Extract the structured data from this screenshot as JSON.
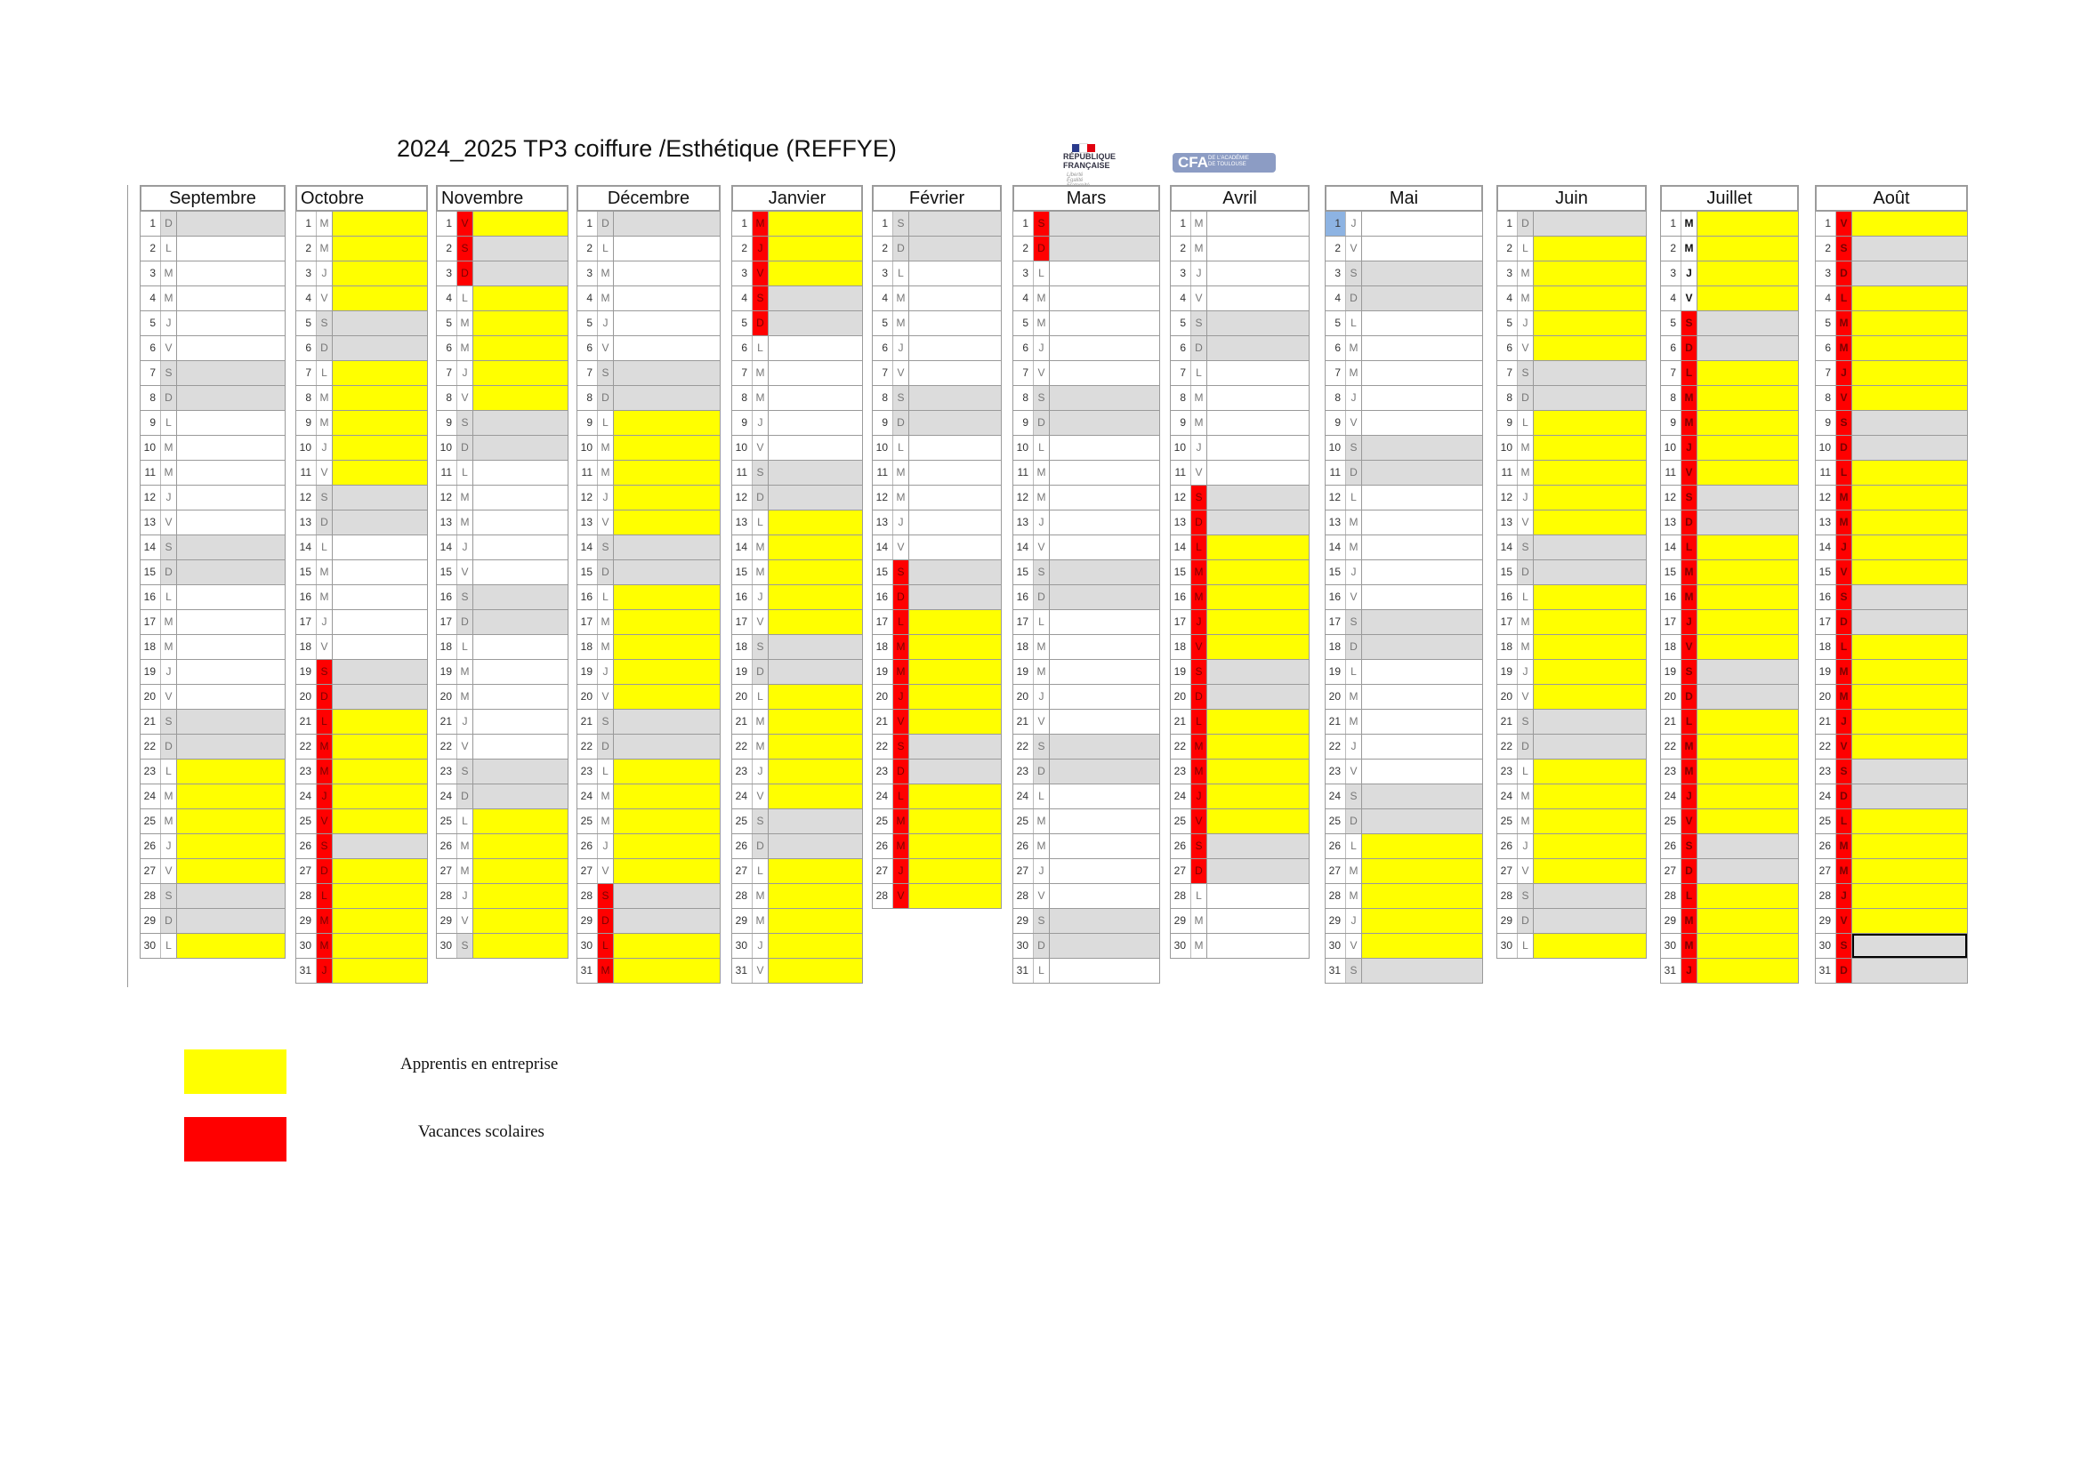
{
  "title": "2024_2025 TP3 coiffure /Esthétique (REFFYE)",
  "logos": {
    "rf_lines": [
      "RÉPUBLIQUE",
      "FRANÇAISE"
    ],
    "rf_motto": "Liberté\nÉgalité\nFraternité",
    "cfa_big": "CFA",
    "cfa_small": "DE L'ACADÉMIE\nDE TOULOUSE"
  },
  "colors": {
    "apprentis": "#ffff00",
    "vacances": "#ff0000",
    "weekend": "#dcdcdc",
    "highlight": "#8db3e2"
  },
  "legend": [
    {
      "label": "Apprentis en entreprise",
      "color": "#ffff00"
    },
    {
      "label": "Vacances scolaires",
      "color": "#ff0000"
    }
  ],
  "months": [
    {
      "name": "Septembre",
      "letters": "DLMMJVSDLMMJVSDLMMJVSDLMMJVSDL",
      "holidays": [],
      "apprentis": [
        [
          23,
          27
        ],
        [
          30,
          30
        ]
      ],
      "extra_weekend": [],
      "bold": false
    },
    {
      "name": "Octobre",
      "letters": "MMJVSDLMMJVSDLMMJVSDLMMJVSDLMMJ",
      "holidays": [
        [
          19,
          31
        ]
      ],
      "apprentis": [
        [
          1,
          4
        ],
        [
          7,
          11
        ],
        [
          21,
          25
        ],
        [
          27,
          31
        ]
      ],
      "extra_weekend": [],
      "bold": false
    },
    {
      "name": "Novembre",
      "letters": "VSDLMMJVSDLMMJVSDLMMJVSDLMMJVS",
      "holidays": [
        [
          1,
          3
        ]
      ],
      "apprentis": [
        [
          1,
          1
        ],
        [
          4,
          8
        ],
        [
          25,
          30
        ]
      ],
      "extra_weekend": [],
      "bold": false
    },
    {
      "name": "Décembre",
      "letters": "DLMMJVSDLMMJVSDLMMJVSDLMMJVSDLM",
      "holidays": [
        [
          28,
          31
        ]
      ],
      "apprentis": [
        [
          9,
          13
        ],
        [
          16,
          20
        ],
        [
          23,
          27
        ],
        [
          30,
          31
        ]
      ],
      "extra_weekend": [],
      "bold": false
    },
    {
      "name": "Janvier",
      "letters": "MJVSDLMMJVSDLMMJVSDLMMJVSDLMMJV",
      "holidays": [
        [
          1,
          5
        ]
      ],
      "apprentis": [
        [
          1,
          3
        ],
        [
          13,
          17
        ],
        [
          20,
          24
        ],
        [
          27,
          31
        ]
      ],
      "extra_weekend": [],
      "bold": false
    },
    {
      "name": "Février",
      "letters": "SDLMMJVSDLMMJVSDLMMJVSDLMMJV",
      "holidays": [
        [
          15,
          28
        ]
      ],
      "apprentis": [
        [
          17,
          21
        ],
        [
          24,
          28
        ]
      ],
      "extra_weekend": [],
      "bold": false
    },
    {
      "name": "Mars",
      "letters": "SDLMMJVSDLMMJVSDLMMJVSDLMMJVSDL",
      "holidays": [
        [
          1,
          2
        ]
      ],
      "apprentis": [],
      "extra_weekend": [],
      "bold": false
    },
    {
      "name": "Avril",
      "letters": "MMJVSDLMMJVSDLMMJVSDLMMJVSDLMM",
      "holidays": [
        [
          12,
          27
        ]
      ],
      "apprentis": [
        [
          14,
          18
        ],
        [
          21,
          25
        ]
      ],
      "extra_weekend": [
        [
          12,
          13
        ],
        [
          19,
          20
        ],
        [
          26,
          27
        ]
      ],
      "bold": false
    },
    {
      "name": "Mai",
      "letters": "JVSDLMMJVSDLMMJVSDLMMJVSDLMMJVS",
      "holidays": [],
      "apprentis": [
        [
          26,
          30
        ]
      ],
      "extra_weekend": [],
      "highlight_day": 1,
      "bold": false
    },
    {
      "name": "Juin",
      "letters": "DLMMJVSDLMMJVSDLMMJVSDLMMJVSDL",
      "holidays": [],
      "apprentis": [
        [
          2,
          6
        ],
        [
          9,
          13
        ],
        [
          16,
          20
        ],
        [
          23,
          27
        ],
        [
          30,
          30
        ]
      ],
      "extra_weekend": [],
      "bold": false
    },
    {
      "name": "Juillet",
      "letters": "MMJVSDLMMJVSDLMMJVSDLMMJVSDLMMJ",
      "holidays": [
        [
          5,
          31
        ]
      ],
      "apprentis": [
        [
          1,
          4
        ],
        [
          7,
          11
        ],
        [
          14,
          18
        ],
        [
          21,
          25
        ],
        [
          28,
          31
        ]
      ],
      "extra_weekend": [],
      "bold": true
    },
    {
      "name": "Août",
      "letters": "VSDLMMJVSDLMMJVSDLMMJVSDLMMJVSD",
      "holidays": [
        [
          1,
          31
        ]
      ],
      "apprentis": [
        [
          1,
          1
        ],
        [
          4,
          8
        ],
        [
          11,
          15
        ],
        [
          18,
          22
        ],
        [
          25,
          29
        ]
      ],
      "extra_weekend": [],
      "boxed_day": 30,
      "bold": true
    }
  ]
}
